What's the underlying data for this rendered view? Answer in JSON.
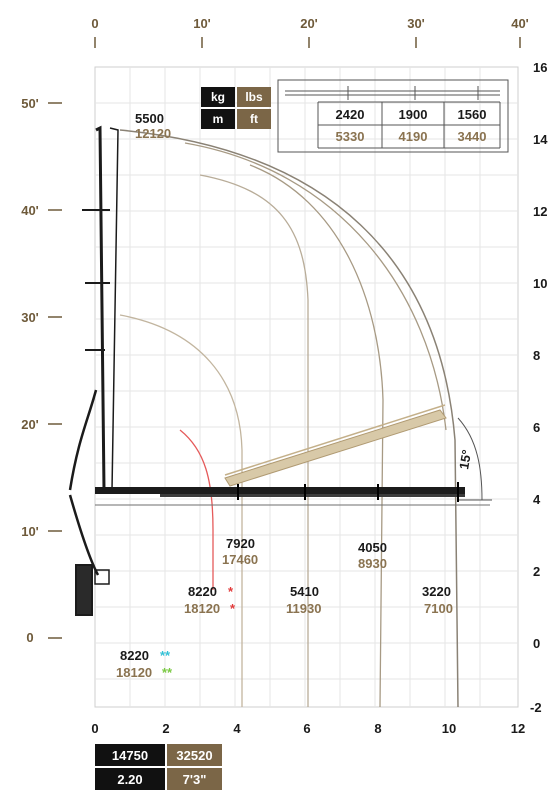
{
  "units": {
    "kg": "kg",
    "lbs": "lbs",
    "m": "m",
    "ft": "ft"
  },
  "axes": {
    "top_ft": [
      "0",
      "10'",
      "20'",
      "30'",
      "40'"
    ],
    "left_ft": [
      "50'",
      "40'",
      "30'",
      "20'",
      "10'",
      "0"
    ],
    "right_m": [
      "16",
      "14",
      "12",
      "10",
      "8",
      "6",
      "4",
      "2",
      "0",
      "-2"
    ],
    "bottom_m": [
      "0",
      "2",
      "4",
      "6",
      "8",
      "10",
      "12"
    ]
  },
  "extension_table": {
    "kg": [
      "2420",
      "1900",
      "1560"
    ],
    "lbs": [
      "5330",
      "4190",
      "3440"
    ]
  },
  "loads": {
    "top": {
      "kg": "5500",
      "lbs": "12120"
    },
    "p7920": {
      "kg": "7920",
      "lbs": "17460"
    },
    "p4050": {
      "kg": "4050",
      "lbs": "8930"
    },
    "p8220r": {
      "kg": "8220",
      "lbs": "18120",
      "mark": "*"
    },
    "p5410": {
      "kg": "5410",
      "lbs": "11930"
    },
    "p3220": {
      "kg": "3220",
      "lbs": "7100"
    },
    "p8220c": {
      "kg": "8220",
      "lbs": "18120",
      "mark": "**"
    }
  },
  "angle": "15°",
  "bottom_specs": {
    "kg": "14750",
    "lbs": "32520",
    "m": "2.20",
    "ft": "7'3\""
  },
  "colors": {
    "black": "#111111",
    "bronze": "#7b6647",
    "red": "#e23b3b",
    "cyan": "#33c1d6",
    "green": "#7ac943"
  }
}
